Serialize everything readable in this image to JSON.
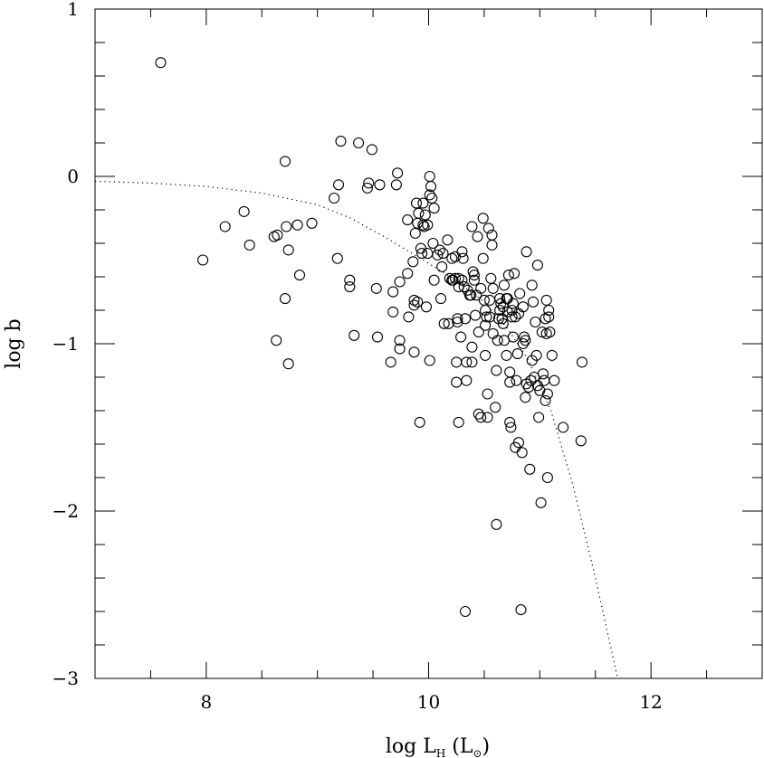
{
  "chart_data": {
    "type": "scatter",
    "title": "",
    "xlabel": "log L",
    "xlabel_sub": "H",
    "xlabel_unit_open": " (L",
    "xlabel_unit_close": ")",
    "ylabel": "log b",
    "xlim": [
      7,
      13
    ],
    "ylim": [
      -3,
      1
    ],
    "x_ticks": [
      8,
      10,
      12
    ],
    "y_ticks": [
      1,
      0,
      -1,
      -2,
      -3
    ],
    "x_tick_labels": [
      "8",
      "10",
      "12"
    ],
    "y_tick_labels": [
      "1",
      "0",
      "−1",
      "−2",
      "−3"
    ],
    "grid": false,
    "marker": "open-circle",
    "series": [
      {
        "points": [
          [
            7.59,
            0.68
          ],
          [
            7.97,
            -0.5
          ],
          [
            8.17,
            -0.3
          ],
          [
            8.34,
            -0.21
          ],
          [
            8.39,
            -0.41
          ],
          [
            8.61,
            -0.36
          ],
          [
            8.64,
            -0.35
          ],
          [
            8.63,
            -0.98
          ],
          [
            8.71,
            0.09
          ],
          [
            8.71,
            -0.73
          ],
          [
            8.72,
            -0.3
          ],
          [
            8.74,
            -0.44
          ],
          [
            8.74,
            -1.12
          ],
          [
            8.82,
            -0.29
          ],
          [
            8.84,
            -0.59
          ],
          [
            8.95,
            -0.28
          ],
          [
            9.15,
            -0.13
          ],
          [
            9.19,
            -0.05
          ],
          [
            9.21,
            0.21
          ],
          [
            9.18,
            -0.49
          ],
          [
            9.29,
            -0.62
          ],
          [
            9.29,
            -0.66
          ],
          [
            9.33,
            -0.95
          ],
          [
            9.37,
            0.2
          ],
          [
            9.46,
            -0.04
          ],
          [
            9.45,
            -0.07
          ],
          [
            9.49,
            0.16
          ],
          [
            9.53,
            -0.67
          ],
          [
            9.54,
            -0.96
          ],
          [
            9.56,
            -0.05
          ],
          [
            9.66,
            -1.11
          ],
          [
            9.68,
            -0.69
          ],
          [
            9.68,
            -0.81
          ],
          [
            9.71,
            -0.05
          ],
          [
            9.72,
            0.02
          ],
          [
            9.74,
            -0.98
          ],
          [
            9.74,
            -1.03
          ],
          [
            9.74,
            -0.63
          ],
          [
            9.81,
            -0.26
          ],
          [
            9.81,
            -0.58
          ],
          [
            9.82,
            -0.84
          ],
          [
            9.86,
            -0.51
          ],
          [
            9.87,
            -1.05
          ],
          [
            9.87,
            -0.77
          ],
          [
            9.87,
            -0.74
          ],
          [
            9.88,
            -0.34
          ],
          [
            9.89,
            -0.16
          ],
          [
            9.9,
            -0.28
          ],
          [
            9.9,
            -0.75
          ],
          [
            9.91,
            -0.22
          ],
          [
            9.92,
            -1.47
          ],
          [
            9.93,
            -0.43
          ],
          [
            9.94,
            -0.46
          ],
          [
            9.95,
            -0.16
          ],
          [
            9.95,
            -0.29
          ],
          [
            9.96,
            -0.3
          ],
          [
            9.97,
            -0.23
          ],
          [
            9.98,
            -0.78
          ],
          [
            9.99,
            -0.29
          ],
          [
            9.99,
            -0.46
          ],
          [
            10.01,
            0.0
          ],
          [
            10.01,
            -0.11
          ],
          [
            10.02,
            -0.06
          ],
          [
            10.01,
            -1.1
          ],
          [
            10.03,
            -0.13
          ],
          [
            10.04,
            -0.4
          ],
          [
            10.05,
            -0.62
          ],
          [
            10.05,
            -0.19
          ],
          [
            10.08,
            -0.47
          ],
          [
            10.1,
            -0.44
          ],
          [
            10.11,
            -0.73
          ],
          [
            10.12,
            -0.54
          ],
          [
            10.13,
            -0.46
          ],
          [
            10.14,
            -0.88
          ],
          [
            10.17,
            -0.38
          ],
          [
            10.18,
            -0.88
          ],
          [
            10.19,
            -0.61
          ],
          [
            10.21,
            -0.49
          ],
          [
            10.21,
            -0.62
          ],
          [
            10.22,
            -0.62
          ],
          [
            10.24,
            -0.48
          ],
          [
            10.24,
            -0.61
          ],
          [
            10.25,
            -1.23
          ],
          [
            10.25,
            -1.11
          ],
          [
            10.26,
            -0.85
          ],
          [
            10.26,
            -0.87
          ],
          [
            10.27,
            -0.61
          ],
          [
            10.27,
            -0.66
          ],
          [
            10.27,
            -1.47
          ],
          [
            10.29,
            -0.96
          ],
          [
            10.3,
            -0.45
          ],
          [
            10.3,
            -0.62
          ],
          [
            10.31,
            -0.49
          ],
          [
            10.32,
            -0.66
          ],
          [
            10.33,
            -0.85
          ],
          [
            10.33,
            -2.6
          ],
          [
            10.34,
            -1.11
          ],
          [
            10.34,
            -1.22
          ],
          [
            10.35,
            -0.68
          ],
          [
            10.37,
            -0.71
          ],
          [
            10.38,
            -0.71
          ],
          [
            10.39,
            -1.11
          ],
          [
            10.39,
            -1.02
          ],
          [
            10.39,
            -0.3
          ],
          [
            10.4,
            -0.57
          ],
          [
            10.41,
            -0.59
          ],
          [
            10.41,
            -0.62
          ],
          [
            10.42,
            -0.83
          ],
          [
            10.43,
            -0.71
          ],
          [
            10.44,
            -0.36
          ],
          [
            10.45,
            -0.93
          ],
          [
            10.45,
            -1.42
          ],
          [
            10.47,
            -0.67
          ],
          [
            10.47,
            -1.44
          ],
          [
            10.49,
            -0.25
          ],
          [
            10.49,
            -0.49
          ],
          [
            10.5,
            -0.74
          ],
          [
            10.51,
            -0.8
          ],
          [
            10.51,
            -0.89
          ],
          [
            10.51,
            -1.07
          ],
          [
            10.52,
            -0.84
          ],
          [
            10.53,
            -1.3
          ],
          [
            10.53,
            -1.44
          ],
          [
            10.54,
            -0.31
          ],
          [
            10.55,
            -0.74
          ],
          [
            10.55,
            -0.84
          ],
          [
            10.56,
            -0.61
          ],
          [
            10.57,
            -0.35
          ],
          [
            10.57,
            -0.41
          ],
          [
            10.58,
            -0.94
          ],
          [
            10.58,
            -0.67
          ],
          [
            10.6,
            -1.38
          ],
          [
            10.61,
            -2.08
          ],
          [
            10.61,
            -1.16
          ],
          [
            10.62,
            -0.98
          ],
          [
            10.63,
            -0.85
          ],
          [
            10.64,
            -0.8
          ],
          [
            10.64,
            -0.73
          ],
          [
            10.65,
            -0.76
          ],
          [
            10.66,
            -0.85
          ],
          [
            10.67,
            -0.88
          ],
          [
            10.67,
            -0.78
          ],
          [
            10.68,
            -0.98
          ],
          [
            10.68,
            -0.65
          ],
          [
            10.7,
            -1.07
          ],
          [
            10.7,
            -0.73
          ],
          [
            10.71,
            -0.81
          ],
          [
            10.71,
            -0.73
          ],
          [
            10.72,
            -0.59
          ],
          [
            10.73,
            -1.17
          ],
          [
            10.73,
            -1.23
          ],
          [
            10.73,
            -1.47
          ],
          [
            10.74,
            -1.5
          ],
          [
            10.75,
            -0.8
          ],
          [
            10.75,
            -0.84
          ],
          [
            10.76,
            -0.96
          ],
          [
            10.76,
            -0.76
          ],
          [
            10.77,
            -0.58
          ],
          [
            10.78,
            -0.84
          ],
          [
            10.78,
            -1.62
          ],
          [
            10.79,
            -1.22
          ],
          [
            10.8,
            -1.06
          ],
          [
            10.81,
            -0.82
          ],
          [
            10.81,
            -1.59
          ],
          [
            10.82,
            -0.7
          ],
          [
            10.83,
            -2.59
          ],
          [
            10.84,
            -1.65
          ],
          [
            10.85,
            -0.78
          ],
          [
            10.85,
            -1.0
          ],
          [
            10.86,
            -0.96
          ],
          [
            10.87,
            -0.98
          ],
          [
            10.87,
            -1.32
          ],
          [
            10.88,
            -1.24
          ],
          [
            10.88,
            -0.45
          ],
          [
            10.9,
            -1.26
          ],
          [
            10.91,
            -1.75
          ],
          [
            10.92,
            -1.22
          ],
          [
            10.93,
            -1.1
          ],
          [
            10.93,
            -0.65
          ],
          [
            10.94,
            -0.75
          ],
          [
            10.95,
            -1.2
          ],
          [
            10.96,
            -0.87
          ],
          [
            10.97,
            -1.07
          ],
          [
            10.98,
            -0.53
          ],
          [
            10.98,
            -1.25
          ],
          [
            10.99,
            -1.44
          ],
          [
            11.0,
            -1.28
          ],
          [
            11.01,
            -1.95
          ],
          [
            11.02,
            -0.93
          ],
          [
            11.03,
            -1.18
          ],
          [
            11.04,
            -1.22
          ],
          [
            11.05,
            -0.85
          ],
          [
            11.05,
            -1.34
          ],
          [
            11.06,
            -0.94
          ],
          [
            11.06,
            -0.74
          ],
          [
            11.07,
            -1.3
          ],
          [
            11.07,
            -1.8
          ],
          [
            11.08,
            -0.8
          ],
          [
            11.08,
            -0.84
          ],
          [
            11.09,
            -0.93
          ],
          [
            11.11,
            -1.07
          ],
          [
            11.13,
            -1.22
          ],
          [
            11.21,
            -1.5
          ],
          [
            11.37,
            -1.58
          ],
          [
            11.38,
            -1.11
          ]
        ]
      }
    ],
    "curve": {
      "style": "dotted",
      "points": [
        [
          7.0,
          -0.03
        ],
        [
          7.5,
          -0.04
        ],
        [
          8.0,
          -0.06
        ],
        [
          8.5,
          -0.1
        ],
        [
          9.0,
          -0.17
        ],
        [
          9.3,
          -0.25
        ],
        [
          9.6,
          -0.36
        ],
        [
          9.9,
          -0.48
        ],
        [
          10.2,
          -0.6
        ],
        [
          10.5,
          -0.75
        ],
        [
          10.7,
          -0.9
        ],
        [
          10.9,
          -1.1
        ],
        [
          11.1,
          -1.4
        ],
        [
          11.3,
          -1.85
        ],
        [
          11.5,
          -2.4
        ],
        [
          11.65,
          -2.85
        ],
        [
          11.7,
          -3.0
        ]
      ]
    }
  }
}
